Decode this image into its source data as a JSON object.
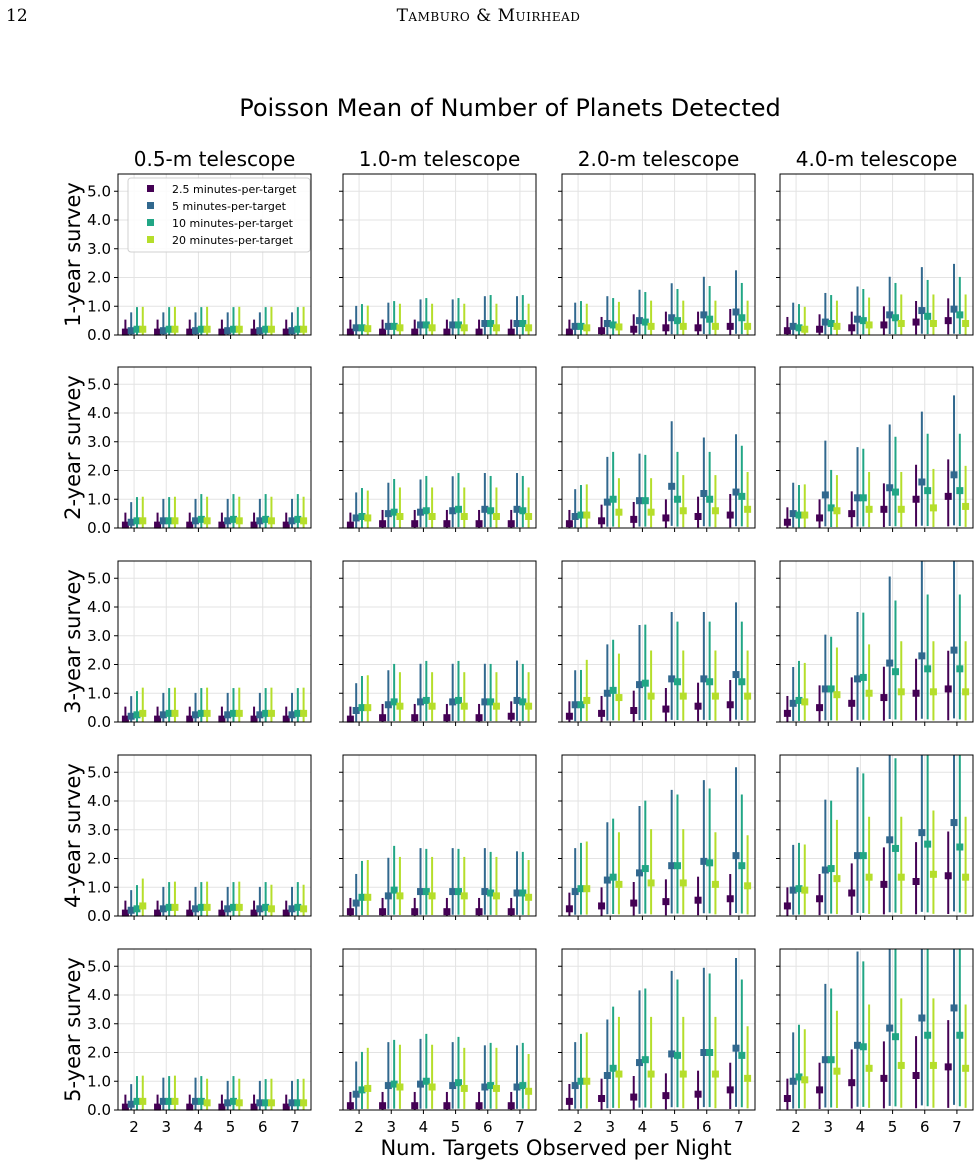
{
  "header": {
    "page_number": "12",
    "running_head": "Tamburo & Muirhead"
  },
  "chart_data": {
    "type": "scatter",
    "title": "Poisson Mean of Number of Planets Detected",
    "xlabel": "Num. Targets Observed per Night",
    "x": [
      2,
      3,
      4,
      5,
      6,
      7
    ],
    "xticks": [
      "2",
      "3",
      "4",
      "5",
      "6",
      "7"
    ],
    "ylim": [
      0,
      5.6
    ],
    "yticks": [
      "0.0",
      "1.0",
      "2.0",
      "3.0",
      "4.0",
      "5.0"
    ],
    "grid": true,
    "legend_placement": "upper-left of first panel",
    "columns": [
      "0.5-m telescope",
      "1.0-m telescope",
      "2.0-m telescope",
      "4.0-m telescope"
    ],
    "rows": [
      "1-year survey",
      "2-year survey",
      "3-year survey",
      "4-year survey",
      "5-year survey"
    ],
    "series": [
      {
        "name": "2.5 minutes-per-target",
        "color": "#440154"
      },
      {
        "name": "5 minutes-per-target",
        "color": "#31688e"
      },
      {
        "name": "10 minutes-per-target",
        "color": "#21a685"
      },
      {
        "name": "20 minutes-per-target",
        "color": "#b5de2b"
      }
    ],
    "values": [
      [
        [
          [
            0.1,
            0.1,
            0.1,
            0.1,
            0.1,
            0.1
          ],
          [
            0.15,
            0.15,
            0.15,
            0.15,
            0.15,
            0.15
          ],
          [
            0.2,
            0.2,
            0.2,
            0.2,
            0.2,
            0.2
          ],
          [
            0.2,
            0.2,
            0.2,
            0.2,
            0.2,
            0.2
          ]
        ],
        [
          [
            0.1,
            0.1,
            0.1,
            0.1,
            0.1,
            0.1
          ],
          [
            0.25,
            0.3,
            0.35,
            0.35,
            0.4,
            0.4
          ],
          [
            0.25,
            0.3,
            0.35,
            0.35,
            0.4,
            0.4
          ],
          [
            0.22,
            0.25,
            0.25,
            0.25,
            0.25,
            0.25
          ]
        ],
        [
          [
            0.1,
            0.15,
            0.2,
            0.25,
            0.25,
            0.3
          ],
          [
            0.3,
            0.4,
            0.5,
            0.6,
            0.7,
            0.8
          ],
          [
            0.3,
            0.35,
            0.45,
            0.5,
            0.55,
            0.6
          ],
          [
            0.25,
            0.28,
            0.3,
            0.3,
            0.3,
            0.3
          ]
        ],
        [
          [
            0.15,
            0.2,
            0.25,
            0.35,
            0.45,
            0.5
          ],
          [
            0.3,
            0.45,
            0.55,
            0.7,
            0.85,
            0.9
          ],
          [
            0.25,
            0.4,
            0.5,
            0.6,
            0.65,
            0.7
          ],
          [
            0.2,
            0.3,
            0.35,
            0.4,
            0.4,
            0.4
          ]
        ]
      ],
      [
        [
          [
            0.1,
            0.1,
            0.1,
            0.1,
            0.1,
            0.1
          ],
          [
            0.2,
            0.25,
            0.25,
            0.25,
            0.25,
            0.25
          ],
          [
            0.25,
            0.25,
            0.3,
            0.3,
            0.3,
            0.3
          ],
          [
            0.25,
            0.25,
            0.25,
            0.25,
            0.25,
            0.25
          ]
        ],
        [
          [
            0.1,
            0.15,
            0.15,
            0.15,
            0.15,
            0.15
          ],
          [
            0.35,
            0.5,
            0.55,
            0.6,
            0.65,
            0.65
          ],
          [
            0.4,
            0.55,
            0.6,
            0.65,
            0.6,
            0.6
          ],
          [
            0.35,
            0.4,
            0.4,
            0.4,
            0.4,
            0.4
          ]
        ],
        [
          [
            0.15,
            0.25,
            0.3,
            0.35,
            0.4,
            0.45
          ],
          [
            0.4,
            0.9,
            0.95,
            1.45,
            1.2,
            1.25
          ],
          [
            0.45,
            1.0,
            0.95,
            1.0,
            1.0,
            1.1
          ],
          [
            0.45,
            0.55,
            0.55,
            0.6,
            0.6,
            0.65
          ]
        ],
        [
          [
            0.2,
            0.35,
            0.5,
            0.65,
            1.0,
            1.1
          ],
          [
            0.5,
            1.15,
            1.05,
            1.4,
            1.6,
            1.85
          ],
          [
            0.45,
            0.7,
            1.05,
            1.25,
            1.3,
            1.3
          ],
          [
            0.45,
            0.6,
            0.65,
            0.65,
            0.7,
            0.75
          ]
        ]
      ],
      [
        [
          [
            0.1,
            0.1,
            0.1,
            0.1,
            0.1,
            0.1
          ],
          [
            0.2,
            0.25,
            0.25,
            0.25,
            0.25,
            0.25
          ],
          [
            0.25,
            0.3,
            0.3,
            0.3,
            0.3,
            0.3
          ],
          [
            0.3,
            0.3,
            0.3,
            0.3,
            0.3,
            0.3
          ]
        ],
        [
          [
            0.1,
            0.15,
            0.15,
            0.15,
            0.15,
            0.2
          ],
          [
            0.4,
            0.6,
            0.7,
            0.7,
            0.7,
            0.75
          ],
          [
            0.5,
            0.7,
            0.75,
            0.75,
            0.7,
            0.7
          ],
          [
            0.5,
            0.55,
            0.55,
            0.55,
            0.55,
            0.55
          ]
        ],
        [
          [
            0.2,
            0.3,
            0.4,
            0.45,
            0.55,
            0.6
          ],
          [
            0.6,
            1.0,
            1.3,
            1.5,
            1.5,
            1.65
          ],
          [
            0.6,
            1.1,
            1.35,
            1.4,
            1.4,
            1.4
          ],
          [
            0.75,
            0.85,
            0.9,
            0.9,
            0.9,
            0.9
          ]
        ],
        [
          [
            0.3,
            0.5,
            0.65,
            0.85,
            1.0,
            1.15
          ],
          [
            0.65,
            1.15,
            1.5,
            2.05,
            2.3,
            2.5
          ],
          [
            0.75,
            1.15,
            1.55,
            1.75,
            1.85,
            1.85
          ],
          [
            0.7,
            0.95,
            1.0,
            1.05,
            1.05,
            1.05
          ]
        ]
      ],
      [
        [
          [
            0.1,
            0.1,
            0.1,
            0.1,
            0.1,
            0.1
          ],
          [
            0.2,
            0.25,
            0.25,
            0.25,
            0.25,
            0.25
          ],
          [
            0.25,
            0.3,
            0.3,
            0.3,
            0.3,
            0.3
          ],
          [
            0.35,
            0.3,
            0.3,
            0.3,
            0.25,
            0.25
          ]
        ],
        [
          [
            0.15,
            0.15,
            0.15,
            0.15,
            0.15,
            0.15
          ],
          [
            0.45,
            0.7,
            0.85,
            0.85,
            0.85,
            0.8
          ],
          [
            0.65,
            0.9,
            0.85,
            0.85,
            0.8,
            0.8
          ],
          [
            0.65,
            0.7,
            0.7,
            0.7,
            0.7,
            0.65
          ]
        ],
        [
          [
            0.25,
            0.35,
            0.45,
            0.5,
            0.55,
            0.6
          ],
          [
            0.85,
            1.25,
            1.5,
            1.75,
            1.9,
            2.1
          ],
          [
            0.95,
            1.35,
            1.65,
            1.75,
            1.85,
            1.75
          ],
          [
            0.95,
            1.1,
            1.15,
            1.15,
            1.1,
            1.05
          ]
        ],
        [
          [
            0.35,
            0.6,
            0.8,
            1.1,
            1.2,
            1.4
          ],
          [
            0.9,
            1.6,
            2.1,
            2.65,
            2.9,
            3.25
          ],
          [
            0.95,
            1.65,
            2.1,
            2.35,
            2.5,
            2.4
          ],
          [
            0.9,
            1.3,
            1.35,
            1.35,
            1.45,
            1.35
          ]
        ]
      ],
      [
        [
          [
            0.1,
            0.1,
            0.1,
            0.1,
            0.1,
            0.1
          ],
          [
            0.2,
            0.3,
            0.3,
            0.25,
            0.25,
            0.25
          ],
          [
            0.3,
            0.3,
            0.3,
            0.3,
            0.25,
            0.25
          ],
          [
            0.3,
            0.3,
            0.25,
            0.25,
            0.25,
            0.25
          ]
        ],
        [
          [
            0.15,
            0.15,
            0.15,
            0.15,
            0.15,
            0.15
          ],
          [
            0.55,
            0.85,
            0.9,
            0.85,
            0.8,
            0.8
          ],
          [
            0.7,
            0.9,
            1.0,
            0.95,
            0.85,
            0.85
          ],
          [
            0.75,
            0.8,
            0.8,
            0.75,
            0.75,
            0.65
          ]
        ],
        [
          [
            0.3,
            0.4,
            0.45,
            0.5,
            0.55,
            0.7
          ],
          [
            0.85,
            1.2,
            1.65,
            1.95,
            2.0,
            2.15
          ],
          [
            1.0,
            1.45,
            1.75,
            1.9,
            2.0,
            1.9
          ],
          [
            1.0,
            1.25,
            1.25,
            1.25,
            1.25,
            1.1
          ]
        ],
        [
          [
            0.4,
            0.7,
            0.95,
            1.1,
            1.2,
            1.5
          ],
          [
            1.0,
            1.75,
            2.25,
            2.85,
            3.2,
            3.55
          ],
          [
            1.15,
            1.75,
            2.2,
            2.55,
            2.6,
            2.6
          ],
          [
            1.05,
            1.35,
            1.45,
            1.55,
            1.55,
            1.45
          ]
        ]
      ]
    ]
  }
}
